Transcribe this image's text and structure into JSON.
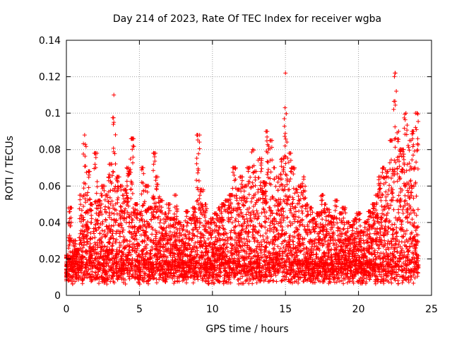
{
  "chart_data": {
    "type": "scatter",
    "title": "Day 214 of 2023, Rate Of TEC Index for receiver wgba",
    "xlabel": "GPS time / hours",
    "ylabel": "ROTI / TECUs",
    "xlim": [
      0,
      25
    ],
    "ylim": [
      0,
      0.14
    ],
    "xticks": [
      0,
      5,
      10,
      15,
      20,
      25
    ],
    "xtick_labels": [
      "0",
      "5",
      "10",
      "15",
      "20",
      "25"
    ],
    "yticks": [
      0,
      0.02,
      0.04,
      0.06,
      0.08,
      0.1,
      0.12,
      0.14
    ],
    "ytick_labels": [
      "0",
      "0.02",
      "0.04",
      "0.06",
      "0.08",
      "0.1",
      "0.12",
      "0.14"
    ],
    "grid": true,
    "marker": "+",
    "color": "#ff0000",
    "series": [
      {
        "x": [
          0.0,
          0.25,
          0.5,
          0.75,
          1.0,
          1.25,
          1.5,
          1.75,
          2.0,
          2.25,
          2.5,
          2.75,
          3.0,
          3.25,
          3.5,
          3.75,
          4.0,
          4.25,
          4.5,
          4.75,
          5.0,
          5.25,
          5.5,
          5.75,
          6.0,
          6.25,
          6.5,
          6.75,
          7.0,
          7.25,
          7.5,
          7.75,
          8.0,
          8.25,
          8.5,
          8.75,
          9.0,
          9.25,
          9.5,
          9.75,
          10.0,
          10.25,
          10.5,
          10.75,
          11.0,
          11.25,
          11.5,
          11.75,
          12.0,
          12.25,
          12.5,
          12.75,
          13.0,
          13.25,
          13.5,
          13.75,
          14.0,
          14.25,
          14.5,
          14.75,
          15.0,
          15.25,
          15.5,
          15.75,
          16.0,
          16.25,
          16.5,
          16.75,
          17.0,
          17.25,
          17.5,
          17.75,
          18.0,
          18.25,
          18.5,
          18.75,
          19.0,
          19.25,
          19.5,
          19.75,
          20.0,
          20.25,
          20.5,
          20.75,
          21.0,
          21.25,
          21.5,
          21.75,
          22.0,
          22.25,
          22.5,
          22.75,
          23.0,
          23.25,
          23.5,
          23.75,
          24.0
        ],
        "y": [
          0.022,
          0.048,
          0.03,
          0.025,
          0.055,
          0.088,
          0.068,
          0.05,
          0.078,
          0.052,
          0.06,
          0.055,
          0.072,
          0.11,
          0.065,
          0.06,
          0.058,
          0.07,
          0.086,
          0.05,
          0.045,
          0.07,
          0.06,
          0.048,
          0.078,
          0.065,
          0.052,
          0.045,
          0.05,
          0.042,
          0.055,
          0.04,
          0.038,
          0.046,
          0.042,
          0.048,
          0.088,
          0.058,
          0.05,
          0.04,
          0.042,
          0.045,
          0.048,
          0.05,
          0.052,
          0.055,
          0.07,
          0.058,
          0.065,
          0.06,
          0.07,
          0.08,
          0.068,
          0.075,
          0.062,
          0.09,
          0.085,
          0.07,
          0.065,
          0.075,
          0.122,
          0.078,
          0.07,
          0.058,
          0.06,
          0.065,
          0.05,
          0.048,
          0.042,
          0.045,
          0.055,
          0.05,
          0.047,
          0.043,
          0.052,
          0.045,
          0.048,
          0.04,
          0.038,
          0.042,
          0.045,
          0.035,
          0.04,
          0.046,
          0.05,
          0.055,
          0.065,
          0.07,
          0.068,
          0.085,
          0.122,
          0.09,
          0.08,
          0.1,
          0.085,
          0.09,
          0.1
        ]
      }
    ]
  }
}
